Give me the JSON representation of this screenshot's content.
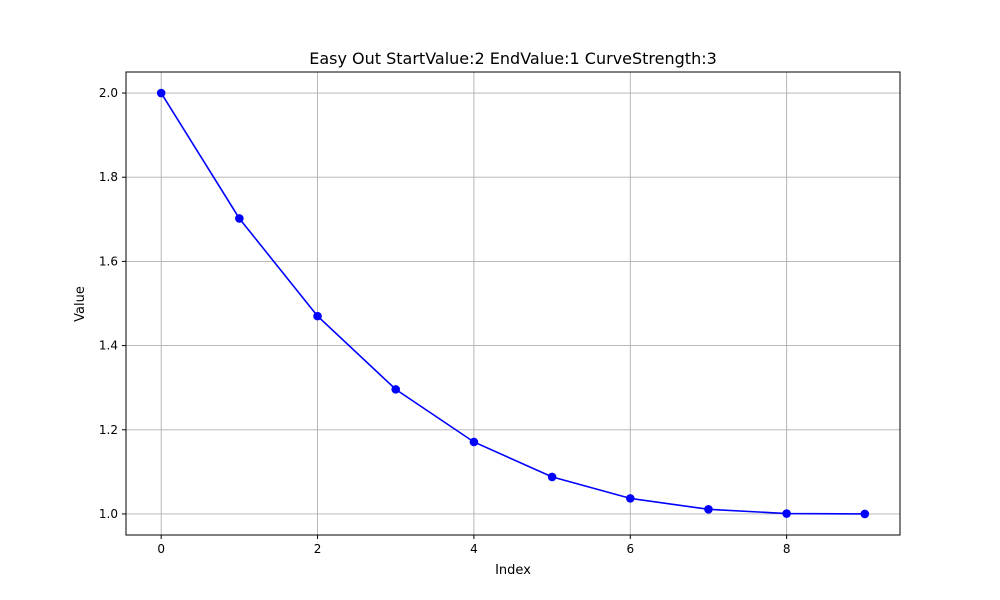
{
  "chart_data": {
    "type": "line",
    "title": "Easy Out StartValue:2 EndValue:1 CurveStrength:3",
    "xlabel": "Index",
    "ylabel": "Value",
    "x": [
      0,
      1,
      2,
      3,
      4,
      5,
      6,
      7,
      8,
      9
    ],
    "series": [
      {
        "values": [
          2.0,
          1.702,
          1.47,
          1.296,
          1.171,
          1.088,
          1.037,
          1.011,
          1.001,
          1.0
        ],
        "color": "#0000ff",
        "marker": "circle"
      }
    ],
    "xlim": [
      -0.45,
      9.45
    ],
    "ylim": [
      0.95,
      2.05
    ],
    "xticks": [
      0,
      2,
      4,
      6,
      8
    ],
    "xtick_labels": [
      "0",
      "2",
      "4",
      "6",
      "8"
    ],
    "yticks": [
      1.0,
      1.2,
      1.4,
      1.6,
      1.8,
      2.0
    ],
    "ytick_labels": [
      "1.0",
      "1.2",
      "1.4",
      "1.6",
      "1.8",
      "2.0"
    ],
    "grid": true,
    "grid_color": "#b0b0b0"
  }
}
